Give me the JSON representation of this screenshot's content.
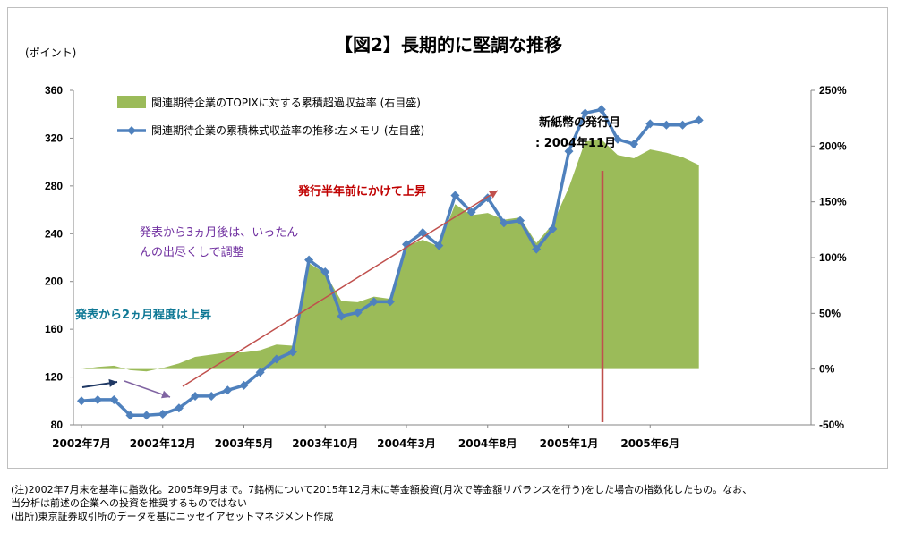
{
  "title": "【図2】長期的に堅調な推移",
  "y_unit": "(ポイント)",
  "chart_data": {
    "type": "line",
    "title": "【図2】長期的に堅調な推移",
    "x_tick_labels": [
      "2002年7月",
      "2002年12月",
      "2003年5月",
      "2003年10月",
      "2004年3月",
      "2004年8月",
      "2005年1月",
      "2005年6月"
    ],
    "x_tick_index": [
      0,
      5,
      10,
      15,
      20,
      25,
      30,
      35
    ],
    "y_left": {
      "min": 80,
      "max": 360,
      "ticks": [
        80,
        120,
        160,
        200,
        240,
        280,
        320,
        360
      ]
    },
    "y_right": {
      "min": -50,
      "max": 250,
      "ticks": [
        "-50%",
        "0%",
        "50%",
        "100%",
        "150%",
        "200%",
        "250%"
      ]
    },
    "grid": false,
    "legend_position": "top-left",
    "series": [
      {
        "name": "関連期待企業のTOPIXに対する累積超過収益率 (右目盛)",
        "type": "area",
        "axis": "right",
        "color": "#9bbb59",
        "values": [
          0,
          2,
          3,
          -1,
          -2,
          1,
          5,
          11,
          13,
          15,
          15,
          17,
          22,
          21,
          95,
          86,
          61,
          60,
          65,
          63,
          110,
          116,
          110,
          148,
          138,
          140,
          134,
          136,
          113,
          130,
          163,
          204,
          206,
          192,
          189,
          197,
          194,
          190,
          183
        ]
      },
      {
        "name": "関連期待企業の累積株式収益率の推移:左メモリ (左目盛)",
        "type": "line",
        "axis": "left",
        "color": "#4f81bd",
        "values": [
          100,
          101,
          101,
          88,
          88,
          89,
          94,
          104,
          104,
          109,
          113,
          124,
          135,
          141,
          218,
          208,
          171,
          174,
          183,
          183,
          231,
          241,
          230,
          272,
          258,
          270,
          249,
          251,
          227,
          244,
          309,
          341,
          344,
          319,
          315,
          332,
          331,
          331,
          335
        ]
      }
    ],
    "annotations": [
      {
        "text": "新紙幣の発行月",
        "color": "#000000"
      },
      {
        "text": ": 2004年11月",
        "color": "#000000"
      },
      {
        "text": "発行半年前にかけて上昇",
        "color": "#c00000"
      },
      {
        "text": "発表から3ヵ月後は、いったん",
        "color": "#7030a0"
      },
      {
        "text": "んの出尽くしで調整",
        "color": "#7030a0"
      },
      {
        "text": "発表から2ヵ月程度は上昇",
        "color": "#0e7895"
      }
    ],
    "colors": {
      "area": "#9bbb59",
      "line": "#4f81bd",
      "vline": "#c0504d",
      "arrow_red": "#c0504d",
      "arrow_purple": "#8064a2",
      "arrow_navy": "#1f3864"
    }
  },
  "notes": [
    "(注)2002年7月末を基準に指数化。2005年9月まで。7銘柄について2015年12月末に等金額投資(月次で等金額リバランスを行う)をした場合の指数化したもの。なお、",
    "当分析は前述の企業への投資を推奨するものではない",
    "(出所)東京証券取引所のデータを基にニッセイアセットマネジメント作成"
  ]
}
